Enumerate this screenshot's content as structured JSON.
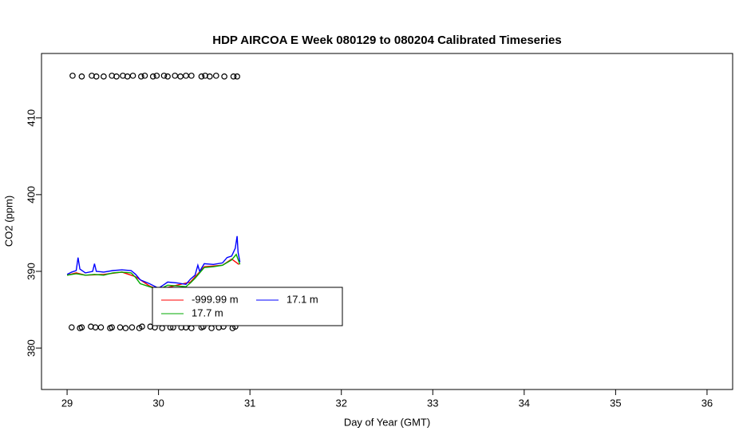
{
  "chart_data": {
    "type": "line",
    "title": "HDP AIRCOA E  Week 080129 to 080204  Calibrated Timeseries",
    "xlabel": "Day of Year (GMT)",
    "ylabel": "CO2 (ppm)",
    "xlim": [
      28.72,
      36.28
    ],
    "xticks": [
      29,
      30,
      31,
      32,
      33,
      34,
      35,
      36
    ],
    "ylim": [
      374.6,
      418.4
    ],
    "yticks": [
      380,
      390,
      400,
      410
    ],
    "series": [
      {
        "name": "-999.99 m",
        "color": "#ff0000",
        "x": [
          29.0,
          29.1,
          29.2,
          29.4,
          29.6,
          29.75,
          29.9,
          30.0,
          30.2,
          30.35,
          30.5,
          30.7,
          30.8,
          30.88
        ],
        "values": [
          389.5,
          389.8,
          389.5,
          389.6,
          389.9,
          389.3,
          388.1,
          387.6,
          388.2,
          388.6,
          390.6,
          390.8,
          391.6,
          390.9
        ]
      },
      {
        "name": "17.1 m",
        "color": "#0000ff",
        "x": [
          29.0,
          29.05,
          29.1,
          29.12,
          29.14,
          29.2,
          29.28,
          29.3,
          29.32,
          29.4,
          29.5,
          29.6,
          29.7,
          29.75,
          29.8,
          29.9,
          30.0,
          30.05,
          30.1,
          30.2,
          30.3,
          30.35,
          30.4,
          30.43,
          30.45,
          30.5,
          30.6,
          30.7,
          30.75,
          30.8,
          30.84,
          30.86,
          30.87,
          30.89
        ],
        "values": [
          389.6,
          389.9,
          390.1,
          391.8,
          390.3,
          389.8,
          390.0,
          391.0,
          390.0,
          389.9,
          390.1,
          390.2,
          390.1,
          389.6,
          388.9,
          388.4,
          387.8,
          388.2,
          388.6,
          388.5,
          388.3,
          389.0,
          389.5,
          390.8,
          390.0,
          391.0,
          390.9,
          391.1,
          391.8,
          392.0,
          393.0,
          394.6,
          392.5,
          391.2
        ]
      },
      {
        "name": "17.7 m",
        "color": "#00aa00",
        "x": [
          29.0,
          29.1,
          29.2,
          29.3,
          29.4,
          29.5,
          29.6,
          29.7,
          29.75,
          29.8,
          29.9,
          30.0,
          30.1,
          30.2,
          30.3,
          30.35,
          30.4,
          30.5,
          30.6,
          30.7,
          30.8,
          30.85,
          30.89
        ],
        "values": [
          389.5,
          389.7,
          389.5,
          389.6,
          389.5,
          389.8,
          389.9,
          389.8,
          389.2,
          388.4,
          388.0,
          387.6,
          388.2,
          388.1,
          388.0,
          388.5,
          389.1,
          390.5,
          390.6,
          390.8,
          391.5,
          392.2,
          390.9
        ]
      },
      {
        "color": "#000000",
        "marker": "circle",
        "x": [
          29.06,
          29.16,
          29.27,
          29.32,
          29.4,
          29.49,
          29.54,
          29.61,
          29.66,
          29.72,
          29.81,
          29.85,
          29.94,
          29.98,
          30.06,
          30.1,
          30.18,
          30.24,
          30.3,
          30.36,
          30.47,
          30.51,
          30.56,
          30.63,
          30.72,
          30.82,
          30.86
        ],
        "values": [
          415.5,
          415.4,
          415.5,
          415.4,
          415.4,
          415.5,
          415.4,
          415.5,
          415.4,
          415.5,
          415.4,
          415.5,
          415.4,
          415.5,
          415.5,
          415.4,
          415.5,
          415.4,
          415.5,
          415.5,
          415.4,
          415.5,
          415.4,
          415.5,
          415.4,
          415.4,
          415.4
        ]
      },
      {
        "color": "#000000",
        "marker": "circle",
        "x": [
          29.05,
          29.14,
          29.16,
          29.26,
          29.31,
          29.37,
          29.47,
          29.49,
          29.58,
          29.64,
          29.71,
          29.79,
          29.82,
          29.91,
          29.96,
          30.04,
          30.13,
          30.16,
          30.25,
          30.3,
          30.36,
          30.47,
          30.49,
          30.58,
          30.66,
          30.71,
          30.81,
          30.84
        ],
        "values": [
          382.7,
          382.6,
          382.7,
          382.8,
          382.7,
          382.7,
          382.6,
          382.7,
          382.7,
          382.6,
          382.7,
          382.6,
          382.8,
          382.8,
          382.7,
          382.6,
          382.7,
          382.7,
          382.7,
          382.7,
          382.6,
          382.7,
          382.8,
          382.6,
          382.7,
          382.8,
          382.6,
          382.8
        ]
      }
    ]
  }
}
